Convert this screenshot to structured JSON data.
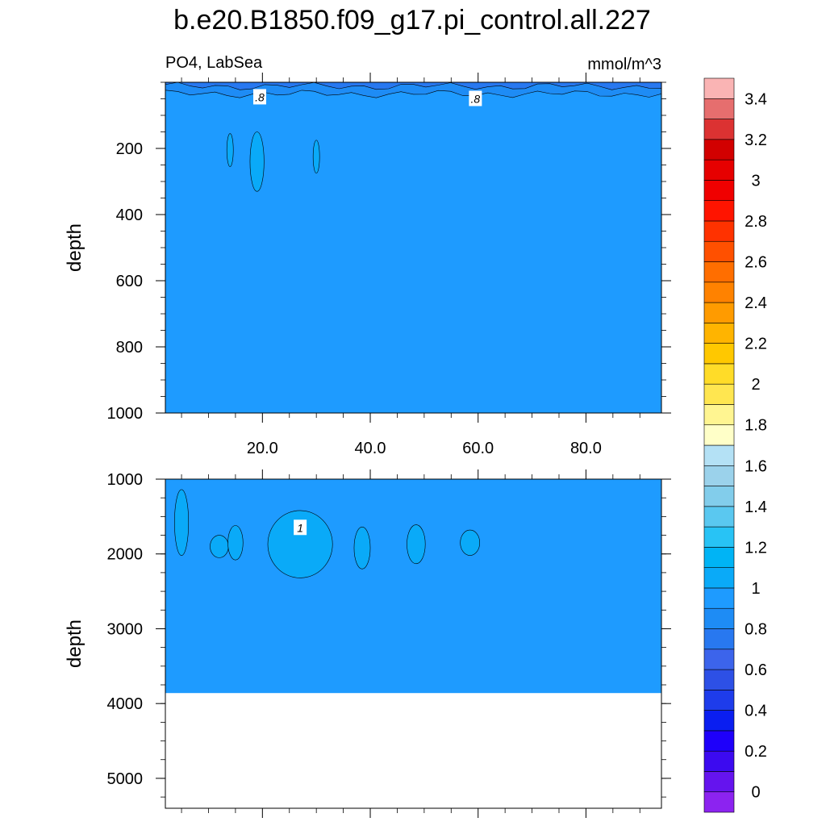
{
  "chart_data": {
    "type": "heatmap",
    "title": "b.e20.B1850.f09_g17.pi_control.all.227",
    "subtitle_left": "PO4, LabSea",
    "subtitle_right": "mmol/m^3",
    "x_ticks": [
      "20.0",
      "40.0",
      "60.0",
      "80.0"
    ],
    "x_tick_values": [
      20,
      40,
      60,
      80
    ],
    "xlim": [
      2,
      94
    ],
    "panels": [
      {
        "name": "upper",
        "ylabel": "depth",
        "ylim": [
          0,
          1000
        ],
        "y_ticks": [
          "200",
          "400",
          "600",
          "800",
          "1000"
        ],
        "y_tick_values": [
          200,
          400,
          600,
          800,
          1000
        ],
        "background_level": 0.9,
        "surface_layers": [
          {
            "level": 0.7,
            "top_depth": 0,
            "bottom_depth": 12
          },
          {
            "level": 0.8,
            "top_depth": 12,
            "bottom_depth": 35
          }
        ],
        "contour_labels": [
          {
            "text": ".8",
            "x": 19.5,
            "depth": 45
          },
          {
            "text": ".8",
            "x": 59.5,
            "depth": 50
          }
        ],
        "blobs": [
          {
            "level": 1.0,
            "x_center": 14.0,
            "depth_center": 205,
            "x_halfwidth": 0.6,
            "depth_halfheight": 50
          },
          {
            "level": 1.0,
            "x_center": 19.0,
            "depth_center": 240,
            "x_halfwidth": 1.3,
            "depth_halfheight": 90
          },
          {
            "level": 1.0,
            "x_center": 30.0,
            "depth_center": 225,
            "x_halfwidth": 0.6,
            "depth_halfheight": 50
          }
        ]
      },
      {
        "name": "lower",
        "ylabel": "depth",
        "ylim": [
          1000,
          5400
        ],
        "y_ticks": [
          "1000",
          "2000",
          "3000",
          "4000",
          "5000"
        ],
        "y_tick_values": [
          1000,
          2000,
          3000,
          4000,
          5000
        ],
        "background_level": 0.9,
        "data_bottom_depth": 3860,
        "contour_labels": [
          {
            "text": "1",
            "x": 27.0,
            "depth": 1650
          }
        ],
        "blobs": [
          {
            "level": 1.0,
            "x_center": 5.0,
            "depth_center": 1580,
            "x_halfwidth": 1.3,
            "depth_halfheight": 440
          },
          {
            "level": 1.0,
            "x_center": 12.0,
            "depth_center": 1900,
            "x_halfwidth": 1.7,
            "depth_halfheight": 150
          },
          {
            "level": 1.0,
            "x_center": 15.0,
            "depth_center": 1850,
            "x_halfwidth": 1.4,
            "depth_halfheight": 230
          },
          {
            "level": 1.0,
            "x_center": 27.0,
            "depth_center": 1870,
            "x_halfwidth": 6.0,
            "depth_halfheight": 450
          },
          {
            "level": 1.0,
            "x_center": 38.5,
            "depth_center": 1920,
            "x_halfwidth": 1.5,
            "depth_halfheight": 280
          },
          {
            "level": 1.0,
            "x_center": 48.5,
            "depth_center": 1870,
            "x_halfwidth": 1.7,
            "depth_halfheight": 260
          },
          {
            "level": 1.0,
            "x_center": 58.5,
            "depth_center": 1850,
            "x_halfwidth": 1.8,
            "depth_halfheight": 170
          }
        ]
      }
    ],
    "colorbar": {
      "labels": [
        "0",
        "0.2",
        "0.4",
        "0.6",
        "0.8",
        "1",
        "1.2",
        "1.4",
        "1.6",
        "1.8",
        "2",
        "2.2",
        "2.4",
        "2.6",
        "2.8",
        "3",
        "3.2",
        "3.4"
      ],
      "min": -0.1,
      "step": 0.1,
      "colors": [
        "#8C23F0",
        "#6514EE",
        "#3C0AF0",
        "#1E00FA",
        "#0A1EF0",
        "#1E3CEB",
        "#2D50E6",
        "#3C64EB",
        "#2878F0",
        "#1E8CF5",
        "#1E9BFF",
        "#0AAAF8",
        "#00B4F5",
        "#28C3F5",
        "#5AC8F0",
        "#82CDEB",
        "#9BD2EB",
        "#B4E1F5",
        "#FFFFC8",
        "#FFF591",
        "#FFE650",
        "#FFDC28",
        "#FFC800",
        "#FFB400",
        "#FF9B00",
        "#FF8200",
        "#FF6E00",
        "#FF5000",
        "#FF3200",
        "#FF1400",
        "#F00000",
        "#E60000",
        "#D20000",
        "#DC3232",
        "#E66E6E",
        "#FAB4B4"
      ]
    }
  }
}
